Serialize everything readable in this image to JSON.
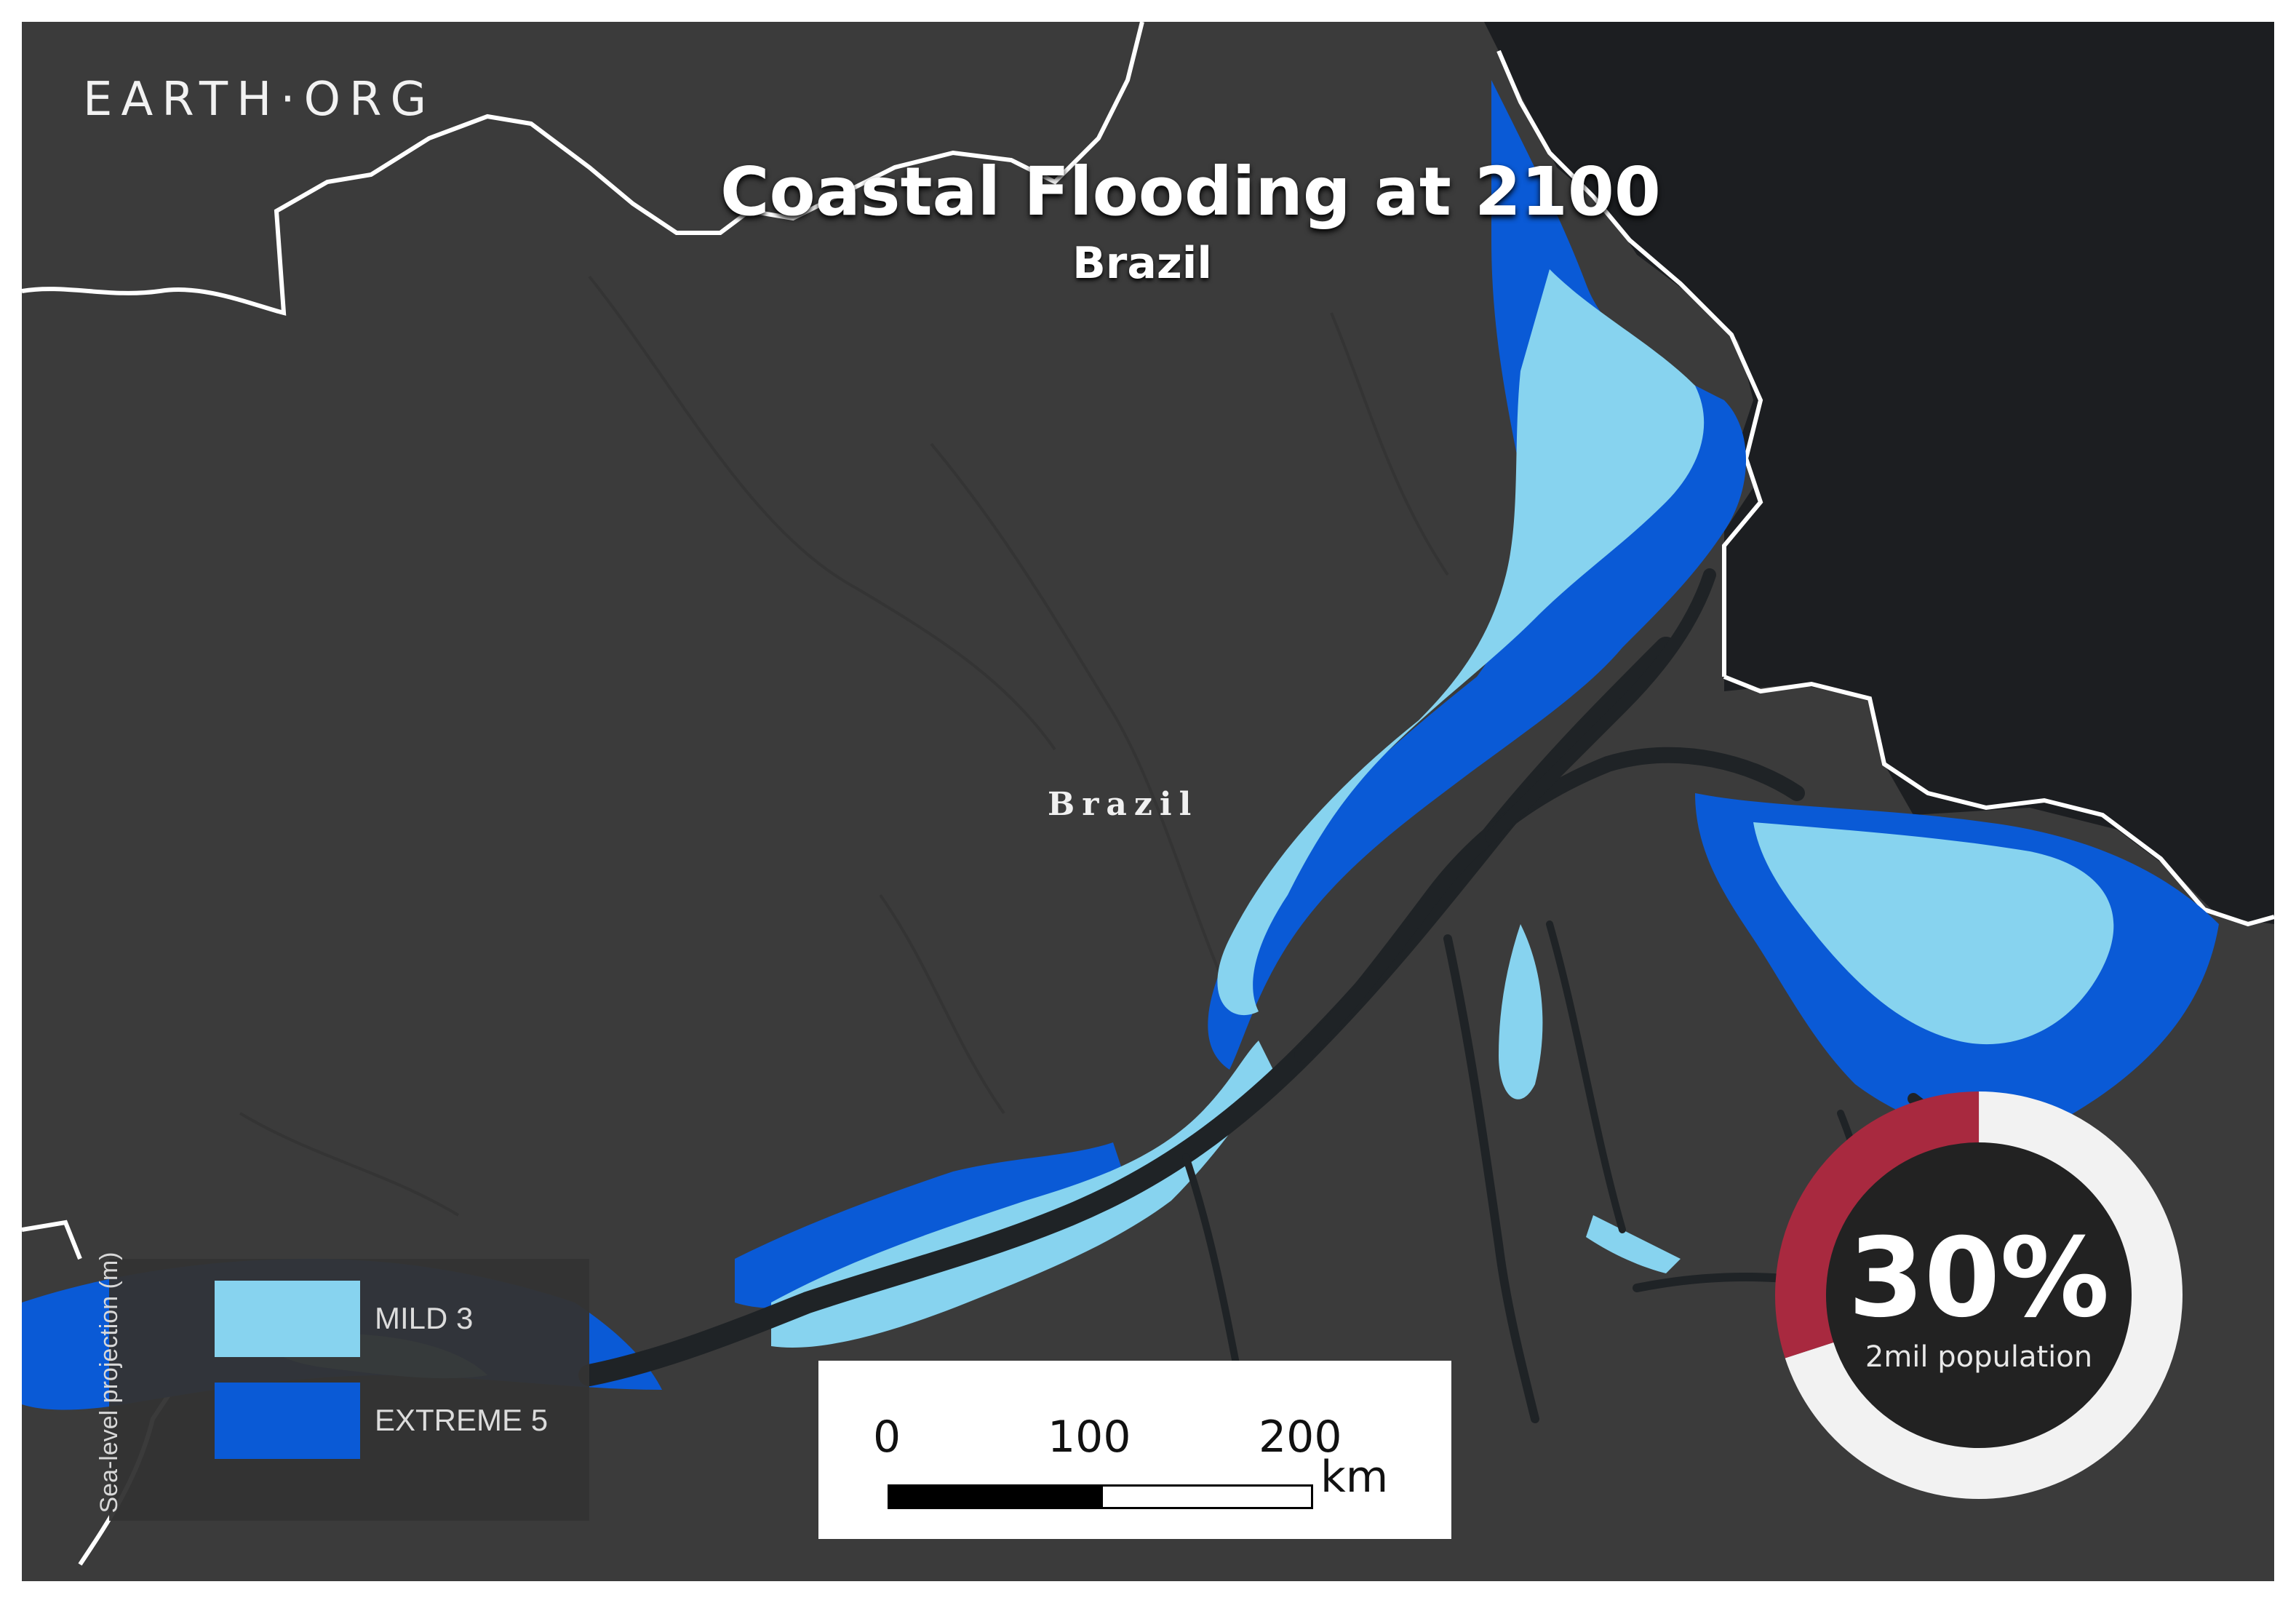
{
  "brand": "EARTH·ORG",
  "title": "Coastal Flooding at 2100",
  "subtitle": "Brazil",
  "map_label": "Brazil",
  "legend": {
    "axis_title": "Sea-level projection (m)",
    "items": [
      {
        "label": "MILD 3",
        "color": "#87d3ef"
      },
      {
        "label": "EXTREME 5",
        "color": "#0a5ad6"
      }
    ]
  },
  "scale": {
    "ticks": [
      "0",
      "100",
      "200"
    ],
    "unit": "km"
  },
  "stat": {
    "value": "30%",
    "caption": "2mil population",
    "fraction": 0.3,
    "color_highlight": "#a8293f",
    "color_rest": "#f2f2f2"
  },
  "colors": {
    "land": "#3b3b3b",
    "ocean": "#1c1e21",
    "river": "#1f2326",
    "border": "#ffffff"
  }
}
